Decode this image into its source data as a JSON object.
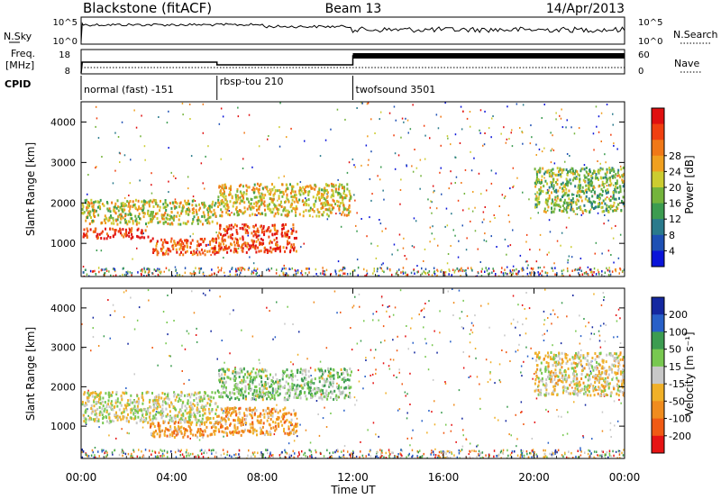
{
  "header": {
    "station": "Blackstone (fitACF)",
    "beam": "Beam 13",
    "date": "14/Apr/2013"
  },
  "noise_panel": {
    "left_label": "N.Sky",
    "left_ticks": [
      "10^5",
      "10^0"
    ],
    "right_ticks": [
      "10^5",
      "10^0"
    ],
    "right_label": "N.Search"
  },
  "freq_panel": {
    "left_label_1": "Freq.",
    "left_label_2": "[MHz]",
    "left_ticks": [
      "18",
      "8"
    ],
    "right_ticks": [
      "60",
      "0"
    ],
    "right_label": "Nave"
  },
  "cpid": {
    "label": "CPID",
    "segments": [
      {
        "name": "normal (fast) -151",
        "start_hour": 0,
        "end_hour": 6
      },
      {
        "name": "rbsp-tou 210",
        "start_hour": 6,
        "end_hour": 12
      },
      {
        "name": "twofsound 3501",
        "start_hour": 12,
        "end_hour": 24
      }
    ]
  },
  "chart_data": [
    {
      "type": "heatmap",
      "title": "",
      "xlabel": "Time UT",
      "ylabel": "Slant Range [km]",
      "xlim_hours": [
        0,
        24
      ],
      "ylim_km": [
        180,
        4500
      ],
      "y_ticks": [
        "1000",
        "2000",
        "3000",
        "4000"
      ],
      "colorbar": {
        "label": "Power [dB]",
        "ticks": [
          "4",
          "8",
          "12",
          "16",
          "20",
          "24",
          "28"
        ],
        "colors": [
          "#0a14d8",
          "#1e50b4",
          "#2a7a8c",
          "#3c9c50",
          "#74b43c",
          "#cccc30",
          "#f0a020",
          "#f07818",
          "#f04010",
          "#e01010"
        ]
      },
      "echo_bands": [
        {
          "start_hour": 0.0,
          "end_hour": 3.0,
          "range_km": [
            1150,
            1400
          ],
          "level": 0.95
        },
        {
          "start_hour": 0.0,
          "end_hour": 6.0,
          "range_km": [
            1500,
            2100
          ],
          "level": 0.55
        },
        {
          "start_hour": 3.0,
          "end_hour": 6.0,
          "range_km": [
            750,
            1150
          ],
          "level": 0.85
        },
        {
          "start_hour": 6.0,
          "end_hour": 9.5,
          "range_km": [
            800,
            1500
          ],
          "level": 0.9
        },
        {
          "start_hour": 6.0,
          "end_hour": 11.9,
          "range_km": [
            1700,
            2500
          ],
          "level": 0.6
        },
        {
          "start_hour": 20.0,
          "end_hour": 24.0,
          "range_km": [
            1800,
            2900
          ],
          "level": 0.45
        }
      ]
    },
    {
      "type": "heatmap",
      "title": "",
      "xlabel": "Time UT",
      "ylabel": "Slant Range [km]",
      "xlim_hours": [
        0,
        24
      ],
      "ylim_km": [
        180,
        4500
      ],
      "y_ticks": [
        "1000",
        "2000",
        "3000",
        "4000"
      ],
      "x_ticks": [
        "00:00",
        "04:00",
        "08:00",
        "12:00",
        "16:00",
        "20:00",
        "00:00"
      ],
      "colorbar": {
        "label": "Velocity [m s^-1]",
        "ticks": [
          "200",
          "100",
          "50",
          "15",
          "-15",
          "-50",
          "-100",
          "-200"
        ],
        "colors": [
          "#1428a0",
          "#2860c8",
          "#3c9c50",
          "#78c850",
          "#c8c8c8",
          "#f0b028",
          "#f08c1e",
          "#f05a14",
          "#e61414"
        ]
      },
      "echo_bands": [
        {
          "start_hour": 0.0,
          "end_hour": 6.0,
          "range_km": [
            1100,
            1900
          ],
          "level": 0.5
        },
        {
          "start_hour": 3.0,
          "end_hour": 6.0,
          "range_km": [
            750,
            1150
          ],
          "level": 0.7
        },
        {
          "start_hour": 6.0,
          "end_hour": 9.5,
          "range_km": [
            800,
            1500
          ],
          "level": 0.7
        },
        {
          "start_hour": 6.0,
          "end_hour": 11.9,
          "range_km": [
            1700,
            2500
          ],
          "level": 0.4
        },
        {
          "start_hour": 20.0,
          "end_hour": 24.0,
          "range_km": [
            1800,
            2900
          ],
          "level": 0.55
        }
      ]
    }
  ]
}
